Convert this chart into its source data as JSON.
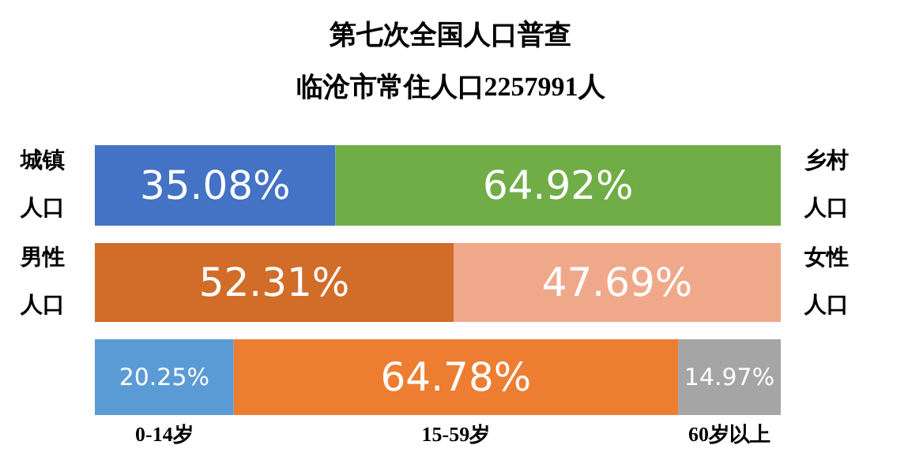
{
  "chart_data": [
    {
      "type": "bar",
      "orientation": "horizontal",
      "stacked": true,
      "title": "第七次全国人口普查",
      "subtitle": "临沧市常住人口2257991人",
      "categories": [
        null
      ],
      "xlim": [
        0,
        100
      ],
      "series": [
        {
          "name": "城镇人口",
          "color": "#4472c4",
          "values": [
            35.08
          ],
          "value_labels": [
            "35.08%"
          ]
        },
        {
          "name": "乡村人口",
          "color": "#70ad47",
          "values": [
            64.92
          ],
          "value_labels": [
            "64.92%"
          ]
        }
      ]
    },
    {
      "type": "bar",
      "orientation": "horizontal",
      "stacked": true,
      "categories": [
        null
      ],
      "xlim": [
        0,
        100
      ],
      "series": [
        {
          "name": "男性人口",
          "color": "#d26c29",
          "values": [
            52.31
          ],
          "value_labels": [
            "52.31%"
          ]
        },
        {
          "name": "女性人口",
          "color": "#f0a88a",
          "values": [
            47.69
          ],
          "value_labels": [
            "47.69%"
          ]
        }
      ]
    },
    {
      "type": "bar",
      "orientation": "horizontal",
      "stacked": true,
      "categories": [
        null
      ],
      "xlim": [
        0,
        100
      ],
      "series": [
        {
          "name": "0-14岁",
          "color": "#5b9bd5",
          "values": [
            20.25
          ],
          "value_labels": [
            "20.25%"
          ]
        },
        {
          "name": "15-59岁",
          "color": "#ed7d31",
          "values": [
            64.78
          ],
          "value_labels": [
            "64.78%"
          ]
        },
        {
          "name": "60岁以上",
          "color": "#a5a5a5",
          "values": [
            14.97
          ],
          "value_labels": [
            "14.97%"
          ]
        }
      ]
    }
  ]
}
